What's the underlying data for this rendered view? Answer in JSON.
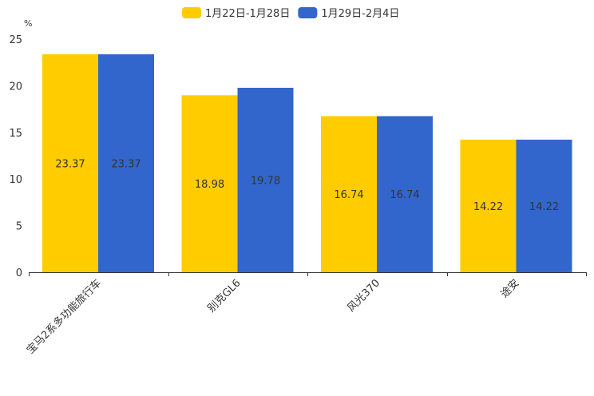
{
  "chart_data": {
    "type": "bar",
    "ylabel": "%",
    "ylim": [
      0,
      25
    ],
    "yticks": [
      0,
      5,
      10,
      15,
      20,
      25
    ],
    "categories": [
      "宝马2系多功能旅行车",
      "别克GL6",
      "风光370",
      "途安"
    ],
    "series": [
      {
        "name": "1月22日-1月28日",
        "color": "#FFCC00",
        "values": [
          23.37,
          18.98,
          16.74,
          14.22
        ],
        "labels": [
          "23.37",
          "18.98",
          "16.74",
          "14.22"
        ]
      },
      {
        "name": "1月29日-2月4日",
        "color": "#3366CC",
        "values": [
          23.37,
          19.78,
          16.74,
          14.22
        ],
        "labels": [
          "23.37",
          "19.78",
          "16.74",
          "14.22"
        ]
      }
    ],
    "legend": "top-center",
    "grid": false
  }
}
